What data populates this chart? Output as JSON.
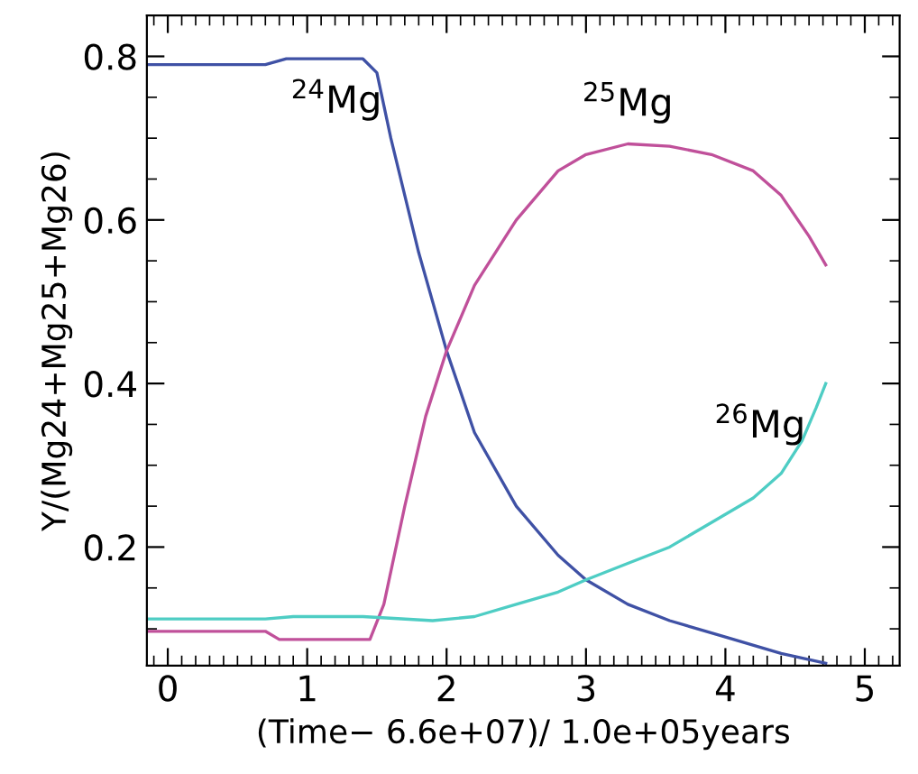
{
  "chart_data": {
    "type": "line",
    "xlabel": "(Time− 6.6e+07)/ 1.0e+05years",
    "ylabel": "Y/(Mg24+Mg25+Mg26)",
    "xlim": [
      -0.15,
      5.25
    ],
    "ylim": [
      0.055,
      0.85
    ],
    "xticks": [
      0,
      1,
      2,
      3,
      4,
      5
    ],
    "yticks": [
      0.2,
      0.4,
      0.6,
      0.8
    ],
    "grid": false,
    "legend": false,
    "series": [
      {
        "name": "$^{24}$Mg",
        "color": "#3f51a5",
        "x": [
          -0.15,
          0.7,
          0.85,
          1.4,
          1.5,
          1.6,
          1.8,
          2.0,
          2.2,
          2.5,
          2.8,
          3.0,
          3.3,
          3.6,
          4.0,
          4.4,
          4.72
        ],
        "values": [
          0.79,
          0.79,
          0.797,
          0.797,
          0.78,
          0.7,
          0.56,
          0.44,
          0.34,
          0.25,
          0.19,
          0.16,
          0.13,
          0.11,
          0.09,
          0.07,
          0.058
        ]
      },
      {
        "name": "$^{25}$Mg",
        "color": "#c0509a",
        "x": [
          -0.15,
          0.7,
          0.8,
          1.45,
          1.55,
          1.7,
          1.85,
          2.0,
          2.2,
          2.5,
          2.8,
          3.0,
          3.3,
          3.6,
          3.9,
          4.2,
          4.4,
          4.6,
          4.72
        ],
        "values": [
          0.097,
          0.097,
          0.087,
          0.087,
          0.13,
          0.25,
          0.36,
          0.44,
          0.52,
          0.6,
          0.66,
          0.68,
          0.693,
          0.69,
          0.68,
          0.66,
          0.63,
          0.58,
          0.545
        ]
      },
      {
        "name": "$^{26}$Mg",
        "color": "#4ecdc4",
        "x": [
          -0.15,
          0.7,
          0.9,
          1.4,
          1.9,
          2.2,
          2.5,
          2.8,
          3.0,
          3.3,
          3.6,
          3.9,
          4.2,
          4.4,
          4.55,
          4.65,
          4.72
        ],
        "values": [
          0.112,
          0.112,
          0.115,
          0.115,
          0.11,
          0.115,
          0.13,
          0.145,
          0.16,
          0.18,
          0.2,
          0.23,
          0.26,
          0.29,
          0.33,
          0.37,
          0.4
        ]
      }
    ]
  }
}
